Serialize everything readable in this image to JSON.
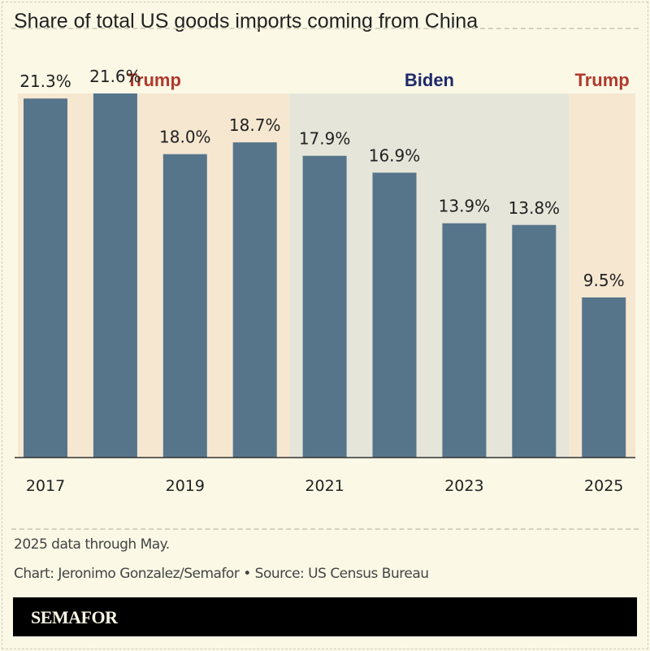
{
  "title": "Share of total US goods imports coming from China",
  "chart_data": {
    "type": "bar",
    "categories": [
      "2017",
      "2018",
      "2019",
      "2020",
      "2021",
      "2022",
      "2023",
      "2024",
      "2025"
    ],
    "values": [
      21.3,
      21.6,
      18.0,
      18.7,
      17.9,
      16.9,
      13.9,
      13.8,
      9.5
    ],
    "data_labels": [
      "21.3%",
      "21.6%",
      "18.0%",
      "18.7%",
      "17.9%",
      "16.9%",
      "13.9%",
      "13.8%",
      "9.5%"
    ],
    "tick_labels": [
      "2017",
      "",
      "2019",
      "",
      "2021",
      "",
      "2023",
      "",
      "2025"
    ],
    "ylim": [
      0,
      21.6
    ],
    "grid": false,
    "bar_color": "#56758a",
    "periods": [
      {
        "label": "Trump",
        "from": "2017",
        "to": "2020",
        "color": "#b0392b",
        "shade": "#f6e7d1"
      },
      {
        "label": "Biden",
        "from": "2021",
        "to": "2024",
        "color": "#1f2a6b",
        "shade": "#e5e5d9"
      },
      {
        "label": "Trump",
        "from": "2025",
        "to": "2025",
        "color": "#b0392b",
        "shade": "#f6e7d1"
      }
    ]
  },
  "footnote": "2025 data through May.",
  "credit": "Chart: Jeronimo Gonzalez/Semafor • Source: US Census Bureau",
  "logo": "SEMAFOR"
}
